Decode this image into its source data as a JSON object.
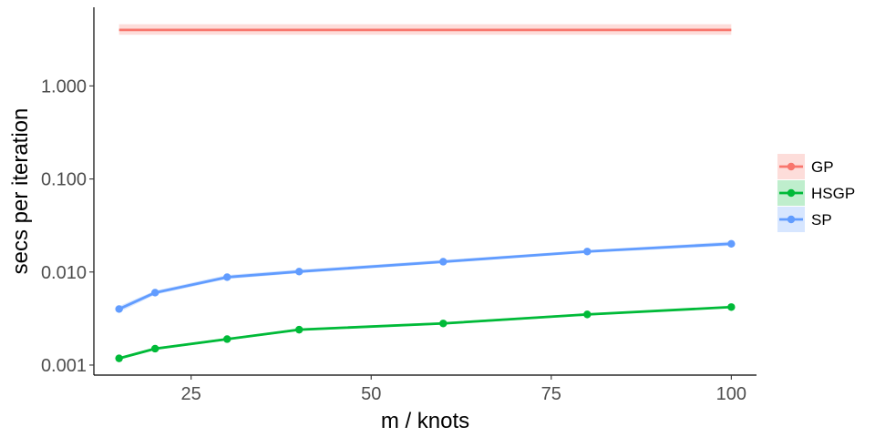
{
  "chart_data": {
    "type": "line",
    "xlabel": "m / knots",
    "ylabel": "secs per iteration",
    "x_scale": "linear",
    "y_scale": "log10",
    "xlim": [
      11.5,
      103.5
    ],
    "ylim": [
      0.00078,
      7.0
    ],
    "x_ticks": [
      25,
      50,
      75,
      100
    ],
    "x_tick_labels": [
      "25",
      "50",
      "75",
      "100"
    ],
    "y_ticks": [
      0.001,
      0.01,
      0.1,
      1
    ],
    "y_tick_labels": [
      "0.001",
      "0.010",
      "0.100",
      "1.000"
    ],
    "grid": false,
    "legend_position": "right",
    "series": [
      {
        "name": "GP",
        "color": "#F8766D",
        "markers": false,
        "x": [
          15,
          100
        ],
        "y": [
          4.0,
          4.0
        ],
        "ribbon_low": [
          3.55,
          3.55
        ],
        "ribbon_high": [
          4.6,
          4.6
        ]
      },
      {
        "name": "HSGP",
        "color": "#00BA38",
        "markers": true,
        "x": [
          15,
          20,
          30,
          40,
          60,
          80,
          100
        ],
        "y": [
          0.00118,
          0.0015,
          0.0019,
          0.0024,
          0.0028,
          0.0035,
          0.0042
        ],
        "ribbon_low": [
          0.00114,
          0.00145,
          0.00184,
          0.00233,
          0.00272,
          0.0034,
          0.0041
        ],
        "ribbon_high": [
          0.00122,
          0.00155,
          0.00196,
          0.00248,
          0.00289,
          0.0036,
          0.0043
        ]
      },
      {
        "name": "SP",
        "color": "#619CFF",
        "markers": true,
        "x": [
          15,
          20,
          30,
          40,
          60,
          80,
          100
        ],
        "y": [
          0.004,
          0.006,
          0.0088,
          0.0101,
          0.0129,
          0.0166,
          0.0201
        ],
        "ribbon_low": [
          0.0037,
          0.0057,
          0.0084,
          0.0097,
          0.0124,
          0.016,
          0.0191
        ],
        "ribbon_high": [
          0.0043,
          0.0063,
          0.0093,
          0.0106,
          0.0135,
          0.0172,
          0.0213
        ]
      }
    ]
  }
}
